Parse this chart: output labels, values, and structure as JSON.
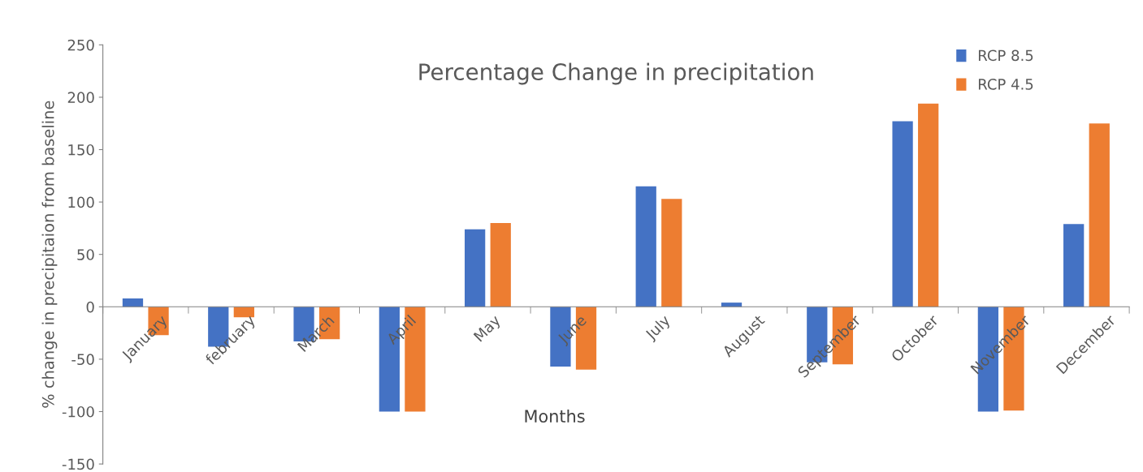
{
  "chart_data": {
    "type": "bar",
    "title": "Percentage Change in precipitation",
    "xlabel": "Months",
    "ylabel": "% change in precipitaion from baseline",
    "categories": [
      "January",
      "february",
      "March",
      "April",
      "May",
      "June",
      "July",
      "August",
      "September",
      "October",
      "November",
      "December"
    ],
    "series": [
      {
        "name": "RCP 8.5",
        "color": "#4472c4",
        "values": [
          8,
          -38,
          -33,
          -100,
          74,
          -57,
          115,
          4,
          -53,
          177,
          -100,
          79
        ]
      },
      {
        "name": "RCP 4.5",
        "color": "#ed7d31",
        "values": [
          -27,
          -10,
          -31,
          -100,
          80,
          -60,
          103,
          0,
          -55,
          194,
          -99,
          175
        ]
      }
    ],
    "ylim": [
      -150,
      250
    ],
    "yticks": [
      -150,
      -100,
      -50,
      0,
      50,
      100,
      150,
      200,
      250
    ],
    "grid": false,
    "legend": "top right"
  }
}
